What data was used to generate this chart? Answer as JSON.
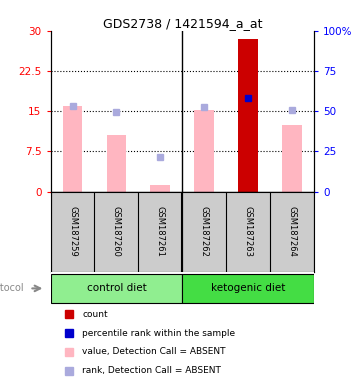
{
  "title": "GDS2738 / 1421594_a_at",
  "samples": [
    "GSM187259",
    "GSM187260",
    "GSM187261",
    "GSM187262",
    "GSM187263",
    "GSM187264"
  ],
  "group_labels": [
    "control diet",
    "ketogenic diet"
  ],
  "ylim_left": [
    0,
    30
  ],
  "ylim_right": [
    0,
    100
  ],
  "yticks_left": [
    0,
    7.5,
    15,
    22.5,
    30
  ],
  "ytick_labels_left": [
    "0",
    "7.5",
    "15",
    "22.5",
    "30"
  ],
  "yticks_right": [
    0,
    25,
    50,
    75,
    100
  ],
  "ytick_labels_right": [
    "0",
    "25",
    "50",
    "75",
    "100%"
  ],
  "bar_values": [
    16.0,
    10.5,
    1.3,
    15.3,
    28.5,
    12.5
  ],
  "bar_colors": [
    "#FFB6C1",
    "#FFB6C1",
    "#FFB6C1",
    "#FFB6C1",
    "#CC0000",
    "#FFB6C1"
  ],
  "rank_values": [
    16.0,
    14.8,
    6.5,
    15.7,
    17.5,
    15.2
  ],
  "rank_colors": [
    "#AAAADD",
    "#AAAADD",
    "#AAAADD",
    "#AAAADD",
    "#0000CC",
    "#AAAADD"
  ],
  "bg_sample": "#CCCCCC",
  "plot_bg": "#FFFFFF",
  "group_color_control": "#90EE90",
  "group_color_keto": "#44DD44",
  "legend_items": [
    {
      "label": "count",
      "color": "#CC0000"
    },
    {
      "label": "percentile rank within the sample",
      "color": "#0000CC"
    },
    {
      "label": "value, Detection Call = ABSENT",
      "color": "#FFB6C1"
    },
    {
      "label": "rank, Detection Call = ABSENT",
      "color": "#AAAADD"
    }
  ]
}
